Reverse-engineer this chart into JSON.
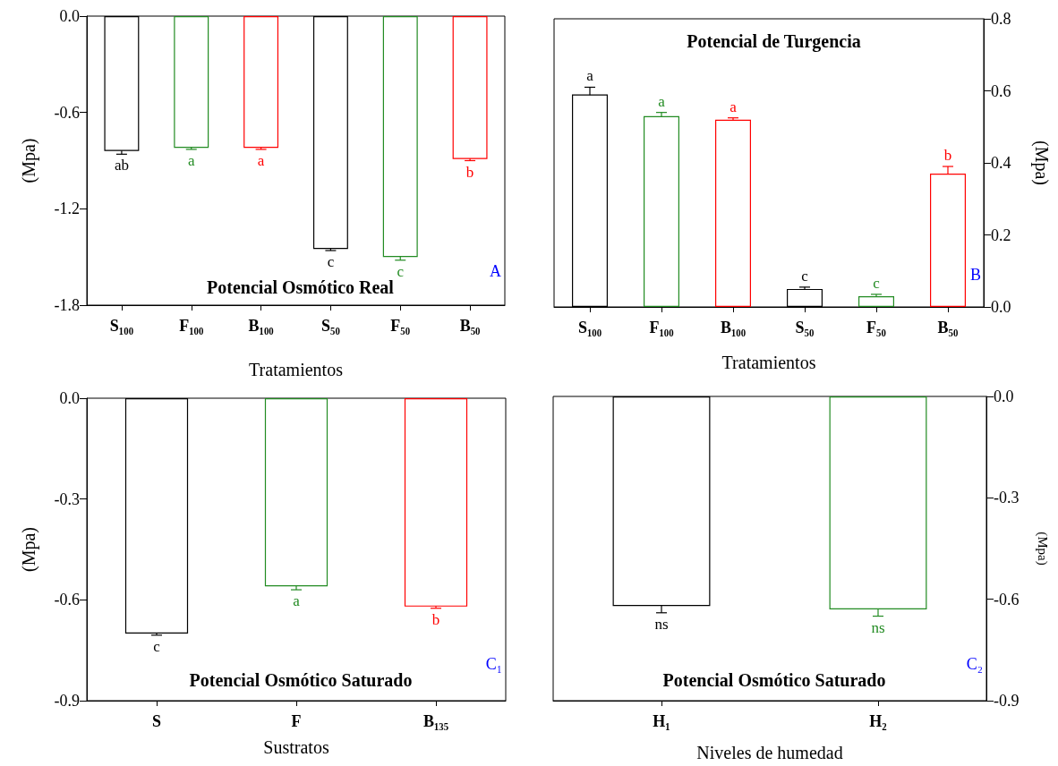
{
  "chart_data": [
    {
      "type": "bar",
      "title": "Potencial Osmótico Real",
      "xlabel": "Tratamientos",
      "ylabel": "(Mpa)",
      "categories": [
        "S₁₀₀",
        "F₁₀₀",
        "B₁₀₀",
        "S₅₀",
        "F₅₀",
        "B₅₀"
      ],
      "series": [
        {
          "values": [
            -0.84,
            -0.82,
            -0.82,
            -1.45,
            -1.5,
            -0.89
          ],
          "colors": [
            "#000000",
            "#228b22",
            "#ff0000",
            "#000000",
            "#228b22",
            "#ff0000"
          ],
          "errors": [
            0.02,
            0.01,
            0.01,
            0.01,
            0.02,
            0.01
          ]
        }
      ],
      "ylim": [
        -1.8,
        0
      ],
      "yticks": [
        {
          "value": 0,
          "label": "0.0"
        },
        -0.6,
        -1.2,
        -1.8
      ],
      "annotations": [
        {
          "text": "ab",
          "x": "S₁₀₀",
          "y": -0.84
        },
        {
          "text": "a",
          "x": "F₁₀₀",
          "y": -0.82
        },
        {
          "text": "a",
          "x": "B₁₀₀",
          "y": -0.82
        },
        {
          "text": "c",
          "x": "S₅₀",
          "y": -1.45
        },
        {
          "text": "c",
          "x": "F₅₀",
          "y": -1.5
        },
        {
          "text": "b",
          "x": "B₅₀",
          "y": -0.89
        },
        "A"
      ]
    },
    {
      "type": "bar",
      "title": "Potencial de Turgencia",
      "xlabel": "Tratamientos",
      "y2label": "(Mpa)",
      "categories": [
        "S₁₀₀",
        "F₁₀₀",
        "B₁₀₀",
        "S₅₀",
        "F₅₀",
        "B₅₀"
      ],
      "series": [
        {
          "axis": "y2",
          "values": [
            0.59,
            0.53,
            0.52,
            0.05,
            0.03,
            0.37
          ],
          "colors": [
            "#000000",
            "#228b22",
            "#ff0000",
            "#000000",
            "#228b22",
            "#ff0000"
          ],
          "errors": [
            0.02,
            0.01,
            0.005,
            0.005,
            0.005,
            0.02
          ]
        }
      ],
      "y2lim": [
        0,
        0.8
      ],
      "y2ticks": [
        {
          "value": 0,
          "label": "0.0"
        },
        0.2,
        0.4,
        0.6,
        0.8
      ],
      "annotations": [
        "a",
        "a",
        "a",
        "c",
        "c",
        "b",
        "B"
      ]
    },
    {
      "type": "bar",
      "title": "Potencial Osmótico Saturado",
      "xlabel": "Sustratos",
      "ylabel": "(Mpa)",
      "categories": [
        "S",
        "F",
        "B₁₃₅"
      ],
      "series": [
        {
          "values": [
            -0.7,
            -0.56,
            -0.62
          ],
          "colors": [
            "#000000",
            "#228b22",
            "#ff0000"
          ],
          "errors": [
            0.005,
            0.01,
            0.005
          ]
        }
      ],
      "ylim": [
        -0.9,
        0
      ],
      "yticks": [
        {
          "value": 0,
          "label": "0.0"
        },
        -0.3,
        -0.6,
        -0.9
      ],
      "annotations": [
        {
          "text": "c",
          "x": "S",
          "y": -0.7
        },
        {
          "text": "a",
          "x": "F",
          "y": -0.56
        },
        {
          "text": "b",
          "x": "B₁₃₅",
          "y": -0.62
        },
        "C₁"
      ]
    },
    {
      "type": "bar",
      "title": "Potencial Osmótico Saturado",
      "xlabel": "Niveles de humedad",
      "y2label": "(Mpa)",
      "categories": [
        "H₁",
        "H₂"
      ],
      "series": [
        {
          "axis": "y2",
          "values": [
            -0.62,
            -0.63
          ],
          "colors": [
            "#000000",
            "#228b22"
          ],
          "errors": [
            0.02,
            0.02
          ]
        }
      ],
      "y2lim": [
        -0.9,
        0
      ],
      "y2ticks": [
        {
          "value": 0,
          "label": "0.0"
        },
        -0.3,
        -0.6,
        -0.9
      ],
      "annotations": [
        "ns",
        "ns",
        "C₂"
      ]
    }
  ]
}
